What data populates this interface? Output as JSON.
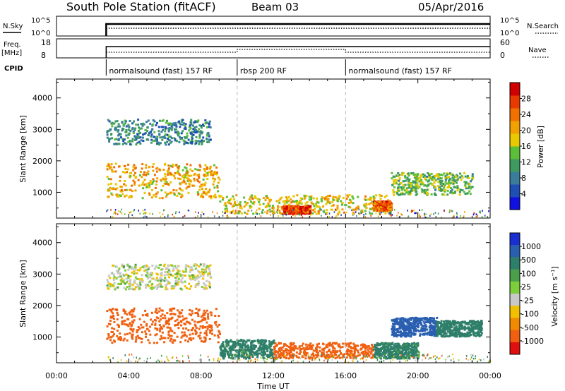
{
  "header": {
    "station": "South Pole Station (fitACF)",
    "beam": "Beam 03",
    "date": "05/Apr/2016"
  },
  "summary": {
    "nsky_label": "N.Sky",
    "nsky_ticks": [
      "10^5",
      "10^0"
    ],
    "nsearch_label": "N.Search",
    "nsearch_ticks": [
      "10^5",
      "10^0"
    ],
    "freq_label": "Freq.",
    "freq_unit": "[MHz]",
    "freq_ticks": [
      "18",
      "8"
    ],
    "nave_label": "Nave",
    "nave_ticks": [
      "60",
      "0"
    ],
    "cpid_label": "CPID",
    "cpid_segments": [
      {
        "label": "normalsound (fast) 157 RF",
        "start_h": 2.75,
        "end_h": 10.0
      },
      {
        "label": "rbsp 200 RF",
        "start_h": 10.0,
        "end_h": 16.0
      },
      {
        "label": "normalsound (fast) 157 RF",
        "start_h": 16.0,
        "end_h": 24.0
      }
    ],
    "data_start_h": 2.75
  },
  "chart_data": [
    {
      "type": "heatmap",
      "quantity": "Power",
      "ylabel": "Slant Range [km]",
      "yticks": [
        1000,
        2000,
        3000,
        4000
      ],
      "ylim": [
        180,
        4600
      ],
      "xlim": [
        0,
        24
      ],
      "colorbar": {
        "label": "Power [dB]",
        "ticks": [
          "4",
          "8",
          "12",
          "16",
          "20",
          "24",
          "28"
        ],
        "range": [
          0,
          32
        ],
        "colors": [
          "#1010e0",
          "#1f4fb4",
          "#3a7d9a",
          "#3e9a60",
          "#5bbf3a",
          "#e8c800",
          "#f0a000",
          "#f07000",
          "#e83a00",
          "#d00000"
        ]
      },
      "echo_regions": [
        {
          "t0": 2.75,
          "t1": 9.0,
          "r0": 800,
          "r1": 1900,
          "level": 20
        },
        {
          "t0": 2.75,
          "t1": 8.5,
          "r0": 2500,
          "r1": 3300,
          "level": 9
        },
        {
          "t0": 9.0,
          "t1": 18.5,
          "r0": 300,
          "r1": 900,
          "level": 18
        },
        {
          "t0": 12.5,
          "t1": 14.0,
          "r0": 300,
          "r1": 550,
          "level": 27
        },
        {
          "t0": 17.5,
          "t1": 18.5,
          "r0": 400,
          "r1": 700,
          "level": 26
        },
        {
          "t0": 18.5,
          "t1": 23.0,
          "r0": 900,
          "r1": 1600,
          "level": 14
        }
      ]
    },
    {
      "type": "heatmap",
      "quantity": "Velocity",
      "ylabel": "Slant Range [km]",
      "yticks": [
        1000,
        2000,
        3000,
        4000
      ],
      "ylim": [
        180,
        4600
      ],
      "xlim": [
        0,
        24
      ],
      "xlabel": "Time UT",
      "xticks": [
        "00:00",
        "04:00",
        "08:00",
        "12:00",
        "16:00",
        "20:00",
        "00:00"
      ],
      "colorbar": {
        "label": "Velocity [m s^-1]",
        "ticks": [
          "1000",
          "500",
          "100",
          "25",
          "-25",
          "-100",
          "-500",
          "-1000"
        ],
        "colors": [
          "#1a2fd0",
          "#2a5fb0",
          "#2e7f6a",
          "#4a9f4a",
          "#7ccf3a",
          "#c8c8c8",
          "#f0c000",
          "#f08a00",
          "#f06010",
          "#e01010"
        ]
      },
      "echo_regions": [
        {
          "t0": 2.75,
          "t1": 9.0,
          "r0": 800,
          "r1": 1900,
          "level": -300
        },
        {
          "t0": 2.75,
          "t1": 8.5,
          "r0": 2500,
          "r1": 3300,
          "level": 0
        },
        {
          "t0": 9.0,
          "t1": 12.0,
          "r0": 300,
          "r1": 900,
          "level": 150
        },
        {
          "t0": 12.0,
          "t1": 17.5,
          "r0": 300,
          "r1": 800,
          "level": -200
        },
        {
          "t0": 17.5,
          "t1": 20.0,
          "r0": 300,
          "r1": 800,
          "level": 150
        },
        {
          "t0": 18.5,
          "t1": 21.0,
          "r0": 1000,
          "r1": 1600,
          "level": 700
        },
        {
          "t0": 21.0,
          "t1": 23.5,
          "r0": 1000,
          "r1": 1500,
          "level": 200
        }
      ]
    }
  ],
  "xaxis": {
    "label": "Time UT",
    "ticks": [
      "00:00",
      "04:00",
      "08:00",
      "12:00",
      "16:00",
      "20:00",
      "00:00"
    ]
  }
}
